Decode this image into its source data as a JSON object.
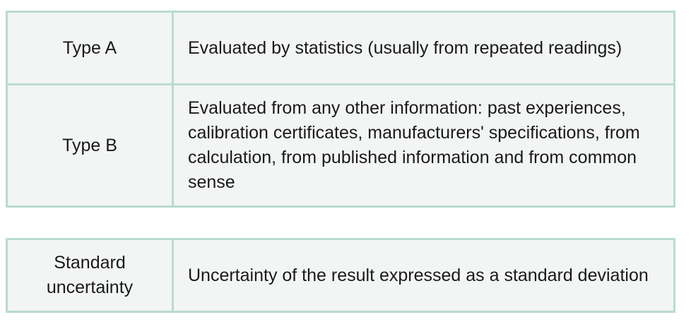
{
  "uncertainty_types": [
    {
      "term": "Type A",
      "description": "Evaluated by statistics (usually from repeated readings)"
    },
    {
      "term": "Type B",
      "description": "Evaluated from any other information: past experiences, calibration certificates, manufacturers' specifications, from calculation, from published information and from common sense"
    }
  ],
  "standard_uncertainty": {
    "term_line1": "Standard",
    "term_line2": "uncertainty",
    "description": "Uncertainty of the result expressed as a standard deviation"
  }
}
